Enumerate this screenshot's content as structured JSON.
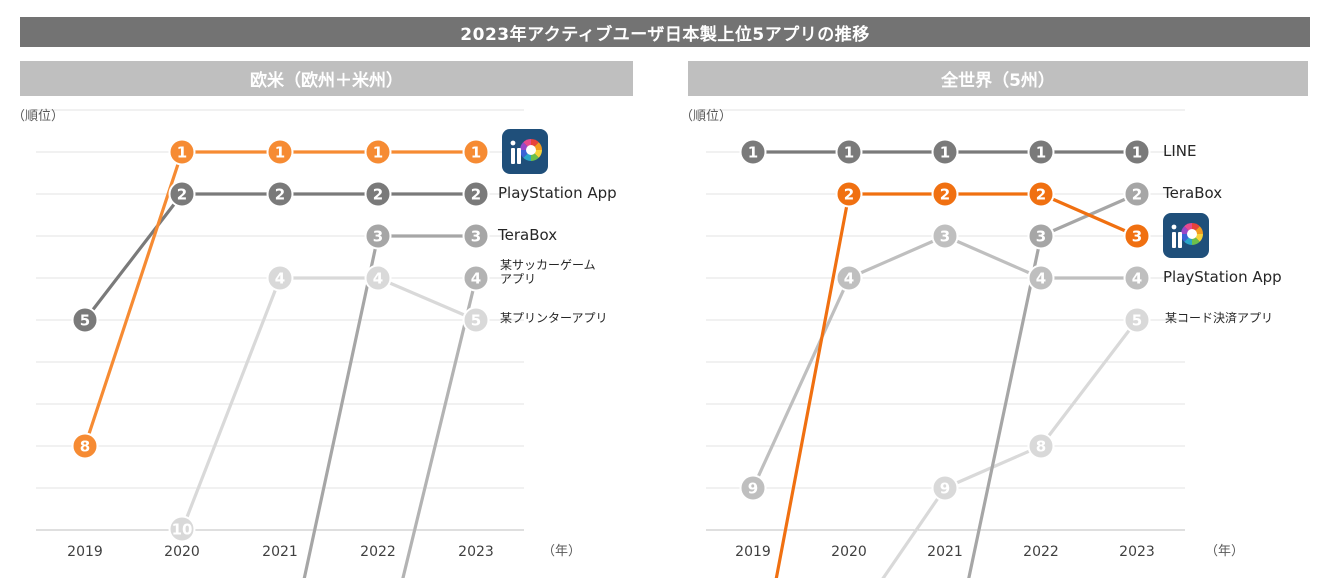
{
  "title": "2023年アクティブユーザ日本製上位5アプリの推移",
  "chart_data": [
    {
      "type": "line",
      "title": "欧米（欧州＋米州）",
      "ylabel": "（順位）",
      "xlabel": "（年）",
      "x": [
        "2019",
        "2020",
        "2021",
        "2022",
        "2023"
      ],
      "ylim": [
        1,
        10
      ],
      "y_direction": "inverted",
      "series": [
        {
          "name": "ibisPaint",
          "label": "",
          "icon": "ibis-paint-app-icon",
          "color": "#f68b33",
          "ranks": [
            8,
            1,
            1,
            1,
            1
          ],
          "marker_labels": [
            "8",
            "1",
            "1",
            "1",
            "1"
          ]
        },
        {
          "name": "PlayStation App",
          "label": "PlayStation App",
          "color": "#7a7a7a",
          "ranks": [
            5,
            2,
            2,
            2,
            2
          ],
          "marker_labels": [
            "5",
            "2",
            "2",
            "2",
            "2"
          ]
        },
        {
          "name": "TeraBox",
          "label": "TeraBox",
          "color": "#a6a6a6",
          "ranks": [
            null,
            null,
            null,
            3,
            3
          ],
          "marker_labels": [
            "",
            "",
            "",
            "3",
            "3"
          ],
          "enters_from_below_after": "2021"
        },
        {
          "name": "某サッカーゲームアプリ",
          "label": "某サッカーゲーム\nアプリ",
          "color": "#b3b3b3",
          "ranks": [
            null,
            null,
            null,
            null,
            4
          ],
          "marker_labels": [
            "",
            "",
            "",
            "",
            "4"
          ],
          "enters_from_below_after": "2022"
        },
        {
          "name": "某プリンターアプリ",
          "label": "某プリンターアプリ",
          "color": "#d9d9d9",
          "ranks": [
            null,
            10,
            4,
            4,
            5
          ],
          "marker_labels": [
            "",
            "10",
            "4",
            "4",
            "5"
          ]
        }
      ]
    },
    {
      "type": "line",
      "title": "全世界（5州）",
      "ylabel": "（順位）",
      "xlabel": "（年）",
      "x": [
        "2019",
        "2020",
        "2021",
        "2022",
        "2023"
      ],
      "ylim": [
        1,
        10
      ],
      "y_direction": "inverted",
      "series": [
        {
          "name": "LINE",
          "label": "LINE",
          "color": "#7a7a7a",
          "ranks": [
            1,
            1,
            1,
            1,
            1
          ],
          "marker_labels": [
            "1",
            "1",
            "1",
            "1",
            "1"
          ]
        },
        {
          "name": "ibisPaint",
          "label": "",
          "icon": "ibis-paint-app-icon",
          "color": "#f07011",
          "ranks": [
            null,
            2,
            2,
            2,
            3
          ],
          "marker_labels": [
            "",
            "2",
            "2",
            "2",
            "3"
          ],
          "enters_from_below_after": "2019"
        },
        {
          "name": "TeraBox",
          "label": "TeraBox",
          "color": "#a6a6a6",
          "ranks": [
            null,
            null,
            null,
            3,
            2
          ],
          "marker_labels": [
            "",
            "",
            "",
            "3",
            "2"
          ],
          "enters_from_below_after": "2021"
        },
        {
          "name": "PlayStation App",
          "label": "PlayStation App",
          "color": "#bfbfbf",
          "ranks": [
            9,
            4,
            3,
            4,
            4
          ],
          "marker_labels": [
            "9",
            "4",
            "3",
            "4",
            "4"
          ]
        },
        {
          "name": "某コード決済アプリ",
          "label": "某コード決済アプリ",
          "color": "#d9d9d9",
          "ranks": [
            null,
            null,
            9,
            8,
            5
          ],
          "marker_labels": [
            "",
            "",
            "9",
            "8",
            "5"
          ],
          "enters_from_below_after": "2020"
        }
      ]
    }
  ]
}
